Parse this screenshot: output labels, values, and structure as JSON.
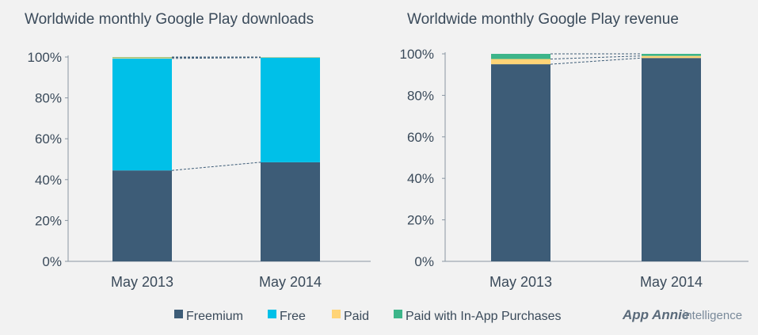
{
  "colors": {
    "Freemium": "#3d5c77",
    "Free": "#00c0e8",
    "Paid": "#ffd477",
    "Paid with In-App Purchases": "#3db58a"
  },
  "chart_data": [
    {
      "type": "bar",
      "stacked": true,
      "title": "Worldwide monthly Google Play downloads",
      "categories": [
        "May 2013",
        "May 2014"
      ],
      "ylim": [
        0,
        100
      ],
      "yticks": [
        "0%",
        "20%",
        "40%",
        "60%",
        "80%",
        "100%"
      ],
      "series": [
        {
          "name": "Freemium",
          "values": [
            44.5,
            48.5
          ]
        },
        {
          "name": "Free",
          "values": [
            54.8,
            51.2
          ]
        },
        {
          "name": "Paid",
          "values": [
            0.5,
            0.2
          ]
        },
        {
          "name": "Paid with In-App Purchases",
          "values": [
            0.2,
            0.1
          ]
        }
      ]
    },
    {
      "type": "bar",
      "stacked": true,
      "title": "Worldwide monthly Google Play revenue",
      "categories": [
        "May 2013",
        "May 2014"
      ],
      "ylim": [
        0,
        100
      ],
      "yticks": [
        "0%",
        "20%",
        "40%",
        "60%",
        "80%",
        "100%"
      ],
      "series": [
        {
          "name": "Freemium",
          "values": [
            95,
            98
          ]
        },
        {
          "name": "Free",
          "values": [
            0,
            0
          ]
        },
        {
          "name": "Paid",
          "values": [
            2.5,
            1
          ]
        },
        {
          "name": "Paid with In-App Purchases",
          "values": [
            2.5,
            1
          ]
        }
      ]
    }
  ],
  "legend": [
    "Freemium",
    "Free",
    "Paid",
    "Paid with In-App Purchases"
  ],
  "brand": {
    "name": "App Annie",
    "suffix": "intelligence"
  }
}
